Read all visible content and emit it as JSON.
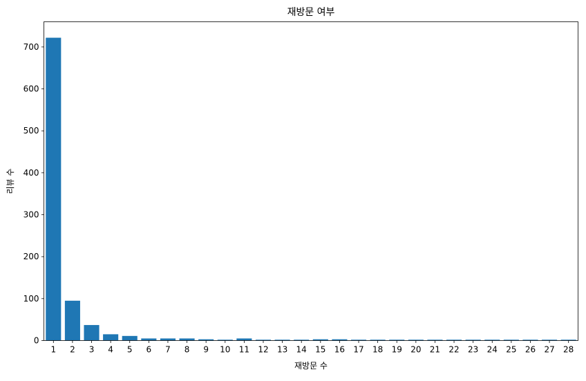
{
  "chart_data": {
    "type": "bar",
    "title": "재방문 여부",
    "xlabel": "재방문 수",
    "ylabel": "리뷰 수",
    "categories": [
      "1",
      "2",
      "3",
      "4",
      "5",
      "6",
      "7",
      "8",
      "9",
      "10",
      "11",
      "12",
      "13",
      "14",
      "15",
      "16",
      "17",
      "18",
      "19",
      "20",
      "21",
      "22",
      "23",
      "24",
      "25",
      "26",
      "27",
      "28"
    ],
    "values": [
      722,
      95,
      37,
      15,
      11,
      5,
      5,
      5,
      3,
      2,
      5,
      2,
      2,
      2,
      3,
      3,
      2,
      2,
      2,
      2,
      2,
      2,
      2,
      2,
      2,
      2,
      2,
      2
    ],
    "ylim": [
      0,
      760
    ],
    "yticks": [
      0,
      100,
      200,
      300,
      400,
      500,
      600,
      700
    ],
    "bar_color": "#1f77b4",
    "grid": false,
    "legend": "none"
  }
}
